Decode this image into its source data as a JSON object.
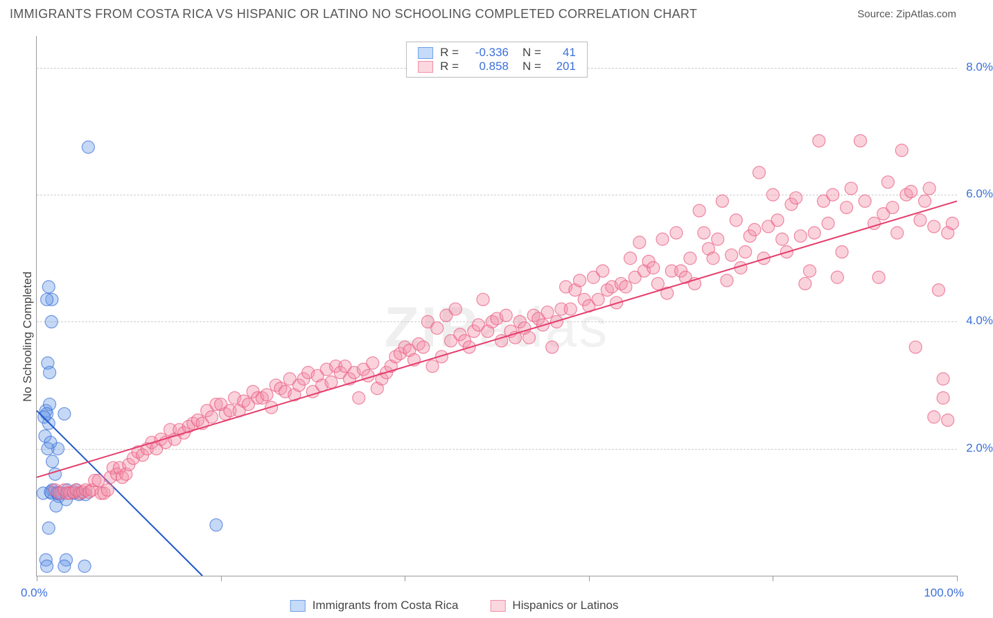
{
  "title": "IMMIGRANTS FROM COSTA RICA VS HISPANIC OR LATINO NO SCHOOLING COMPLETED CORRELATION CHART",
  "source_label": "Source:",
  "source_name": "ZipAtlas.com",
  "y_axis_label": "No Schooling Completed",
  "watermark": {
    "bold": "ZIP",
    "thin": "atlas"
  },
  "chart": {
    "type": "scatter",
    "xlim": [
      0,
      100
    ],
    "ylim": [
      0,
      8.5
    ],
    "x_tick_positions": [
      0,
      20,
      40,
      60,
      80,
      100
    ],
    "x_label_min": "0.0%",
    "x_label_max": "100.0%",
    "y_labels": [
      {
        "value": 2.0,
        "text": "2.0%"
      },
      {
        "value": 4.0,
        "text": "4.0%"
      },
      {
        "value": 6.0,
        "text": "6.0%"
      },
      {
        "value": 8.0,
        "text": "8.0%"
      }
    ],
    "grid_color": "#cccccc",
    "axis_color": "#999999",
    "background_color": "#ffffff",
    "marker_radius": 9,
    "marker_opacity": 0.4,
    "series": [
      {
        "name": "Immigrants from Costa Rica",
        "R": "-0.336",
        "N": "41",
        "color": "#6d9ee6",
        "stroke": "#3a6fd8",
        "fit_line": {
          "x1": 0,
          "y1": 2.6,
          "x2": 18,
          "y2": 0.0,
          "stroke": "#1e56c9",
          "width": 2
        },
        "data": [
          [
            1.3,
            2.4
          ],
          [
            1.0,
            2.6
          ],
          [
            1.4,
            2.7
          ],
          [
            1.1,
            2.55
          ],
          [
            1.7,
            1.35
          ],
          [
            1.6,
            1.3
          ],
          [
            1.7,
            1.8
          ],
          [
            0.7,
            1.3
          ],
          [
            1.5,
            1.32
          ],
          [
            2.2,
            1.31
          ],
          [
            2.0,
            1.6
          ],
          [
            2.4,
            1.25
          ],
          [
            2.3,
            1.3
          ],
          [
            2.7,
            1.3
          ],
          [
            1.2,
            3.35
          ],
          [
            1.3,
            4.55
          ],
          [
            1.65,
            4.35
          ],
          [
            1.1,
            4.35
          ],
          [
            1.6,
            4.0
          ],
          [
            0.8,
            2.5
          ],
          [
            5.6,
            6.75
          ],
          [
            5.2,
            0.15
          ],
          [
            3.2,
            0.25
          ],
          [
            3.0,
            0.15
          ],
          [
            1.0,
            0.25
          ],
          [
            1.1,
            0.15
          ],
          [
            1.3,
            0.75
          ],
          [
            2.1,
            1.1
          ],
          [
            3.2,
            1.2
          ],
          [
            3.3,
            1.35
          ],
          [
            4.3,
            1.35
          ],
          [
            4.6,
            1.28
          ],
          [
            5.3,
            1.28
          ],
          [
            2.3,
            2.0
          ],
          [
            3.0,
            2.55
          ],
          [
            0.9,
            2.2
          ],
          [
            1.5,
            2.1
          ],
          [
            1.2,
            2.0
          ],
          [
            1.4,
            3.2
          ],
          [
            19.5,
            0.8
          ],
          [
            4.0,
            1.3
          ]
        ]
      },
      {
        "name": "Hispanics or Latinos",
        "R": "0.858",
        "N": "201",
        "color": "#f28fa7",
        "stroke": "#e85a7f",
        "fit_line": {
          "x1": 0,
          "y1": 1.55,
          "x2": 100,
          "y2": 5.9,
          "stroke": "#e43d6b",
          "width": 2
        },
        "data": [
          [
            2,
            1.35
          ],
          [
            2.5,
            1.3
          ],
          [
            3,
            1.35
          ],
          [
            3.3,
            1.3
          ],
          [
            3.6,
            1.3
          ],
          [
            4,
            1.32
          ],
          [
            4.3,
            1.35
          ],
          [
            4.7,
            1.3
          ],
          [
            5,
            1.32
          ],
          [
            5.3,
            1.35
          ],
          [
            5.7,
            1.32
          ],
          [
            6,
            1.35
          ],
          [
            6.3,
            1.5
          ],
          [
            6.7,
            1.5
          ],
          [
            7,
            1.3
          ],
          [
            7.3,
            1.3
          ],
          [
            7.7,
            1.35
          ],
          [
            8,
            1.55
          ],
          [
            8.3,
            1.7
          ],
          [
            8.7,
            1.6
          ],
          [
            9,
            1.7
          ],
          [
            9.3,
            1.55
          ],
          [
            9.7,
            1.6
          ],
          [
            10,
            1.75
          ],
          [
            10.5,
            1.85
          ],
          [
            11,
            1.95
          ],
          [
            11.5,
            1.9
          ],
          [
            12,
            2.0
          ],
          [
            12.5,
            2.1
          ],
          [
            13,
            2.0
          ],
          [
            13.5,
            2.15
          ],
          [
            14,
            2.1
          ],
          [
            14.5,
            2.3
          ],
          [
            15,
            2.15
          ],
          [
            15.5,
            2.3
          ],
          [
            16,
            2.25
          ],
          [
            16.5,
            2.35
          ],
          [
            17,
            2.4
          ],
          [
            17.5,
            2.45
          ],
          [
            18,
            2.4
          ],
          [
            18.5,
            2.6
          ],
          [
            19,
            2.5
          ],
          [
            19.5,
            2.7
          ],
          [
            20,
            2.7
          ],
          [
            20.5,
            2.55
          ],
          [
            21,
            2.6
          ],
          [
            21.5,
            2.8
          ],
          [
            22,
            2.6
          ],
          [
            22.5,
            2.75
          ],
          [
            23,
            2.7
          ],
          [
            23.5,
            2.9
          ],
          [
            24,
            2.8
          ],
          [
            24.5,
            2.8
          ],
          [
            25,
            2.85
          ],
          [
            25.5,
            2.65
          ],
          [
            26,
            3.0
          ],
          [
            26.5,
            2.95
          ],
          [
            27,
            2.9
          ],
          [
            27.5,
            3.1
          ],
          [
            28,
            2.85
          ],
          [
            28.5,
            3.0
          ],
          [
            29,
            3.1
          ],
          [
            29.5,
            3.2
          ],
          [
            30,
            2.9
          ],
          [
            30.5,
            3.15
          ],
          [
            31,
            3.0
          ],
          [
            31.5,
            3.25
          ],
          [
            32,
            3.05
          ],
          [
            32.5,
            3.3
          ],
          [
            33,
            3.2
          ],
          [
            33.5,
            3.3
          ],
          [
            34,
            3.1
          ],
          [
            34.5,
            3.2
          ],
          [
            35,
            2.8
          ],
          [
            35.5,
            3.25
          ],
          [
            36,
            3.15
          ],
          [
            36.5,
            3.35
          ],
          [
            37,
            2.95
          ],
          [
            37.5,
            3.1
          ],
          [
            38,
            3.2
          ],
          [
            38.5,
            3.3
          ],
          [
            39,
            3.45
          ],
          [
            39.5,
            3.5
          ],
          [
            40,
            3.6
          ],
          [
            40.5,
            3.55
          ],
          [
            41,
            3.4
          ],
          [
            41.5,
            3.65
          ],
          [
            42,
            3.6
          ],
          [
            42.5,
            4.0
          ],
          [
            43,
            3.3
          ],
          [
            43.5,
            3.9
          ],
          [
            44,
            3.45
          ],
          [
            44.5,
            4.1
          ],
          [
            45,
            3.7
          ],
          [
            45.5,
            4.2
          ],
          [
            46,
            3.8
          ],
          [
            46.5,
            3.7
          ],
          [
            47,
            3.6
          ],
          [
            47.5,
            3.85
          ],
          [
            48,
            3.95
          ],
          [
            48.5,
            4.35
          ],
          [
            49,
            3.85
          ],
          [
            49.5,
            4.0
          ],
          [
            50,
            4.05
          ],
          [
            50.5,
            3.7
          ],
          [
            51,
            4.1
          ],
          [
            51.5,
            3.85
          ],
          [
            52,
            3.75
          ],
          [
            52.5,
            4.0
          ],
          [
            53,
            3.9
          ],
          [
            53.5,
            3.75
          ],
          [
            54,
            4.1
          ],
          [
            54.5,
            4.05
          ],
          [
            55,
            3.95
          ],
          [
            55.5,
            4.15
          ],
          [
            56,
            3.6
          ],
          [
            56.5,
            4.0
          ],
          [
            57,
            4.2
          ],
          [
            57.5,
            4.55
          ],
          [
            58,
            4.2
          ],
          [
            58.5,
            4.5
          ],
          [
            59,
            4.65
          ],
          [
            59.5,
            4.35
          ],
          [
            60,
            4.25
          ],
          [
            60.5,
            4.7
          ],
          [
            61,
            4.35
          ],
          [
            61.5,
            4.8
          ],
          [
            62,
            4.5
          ],
          [
            62.5,
            4.55
          ],
          [
            63,
            4.3
          ],
          [
            63.5,
            4.6
          ],
          [
            64,
            4.55
          ],
          [
            64.5,
            5.0
          ],
          [
            65,
            4.7
          ],
          [
            65.5,
            5.25
          ],
          [
            66,
            4.8
          ],
          [
            66.5,
            4.95
          ],
          [
            67,
            4.85
          ],
          [
            67.5,
            4.6
          ],
          [
            68,
            5.3
          ],
          [
            68.5,
            4.45
          ],
          [
            69,
            4.8
          ],
          [
            69.5,
            5.4
          ],
          [
            70,
            4.8
          ],
          [
            70.5,
            4.7
          ],
          [
            71,
            5.0
          ],
          [
            71.5,
            4.6
          ],
          [
            72,
            5.75
          ],
          [
            72.5,
            5.4
          ],
          [
            73,
            5.15
          ],
          [
            73.5,
            5.0
          ],
          [
            74,
            5.3
          ],
          [
            74.5,
            5.9
          ],
          [
            75,
            4.65
          ],
          [
            75.5,
            5.05
          ],
          [
            76,
            5.6
          ],
          [
            76.5,
            4.85
          ],
          [
            77,
            5.1
          ],
          [
            77.5,
            5.35
          ],
          [
            78,
            5.45
          ],
          [
            78.5,
            6.35
          ],
          [
            79,
            5.0
          ],
          [
            79.5,
            5.5
          ],
          [
            80,
            6.0
          ],
          [
            80.5,
            5.6
          ],
          [
            81,
            5.3
          ],
          [
            81.5,
            5.1
          ],
          [
            82,
            5.85
          ],
          [
            82.5,
            5.95
          ],
          [
            83,
            5.35
          ],
          [
            83.5,
            4.6
          ],
          [
            84,
            4.8
          ],
          [
            84.5,
            5.4
          ],
          [
            85,
            6.85
          ],
          [
            85.5,
            5.9
          ],
          [
            86,
            5.55
          ],
          [
            86.5,
            6.0
          ],
          [
            87,
            4.7
          ],
          [
            87.5,
            5.1
          ],
          [
            88,
            5.8
          ],
          [
            88.5,
            6.1
          ],
          [
            89.5,
            6.85
          ],
          [
            90,
            5.9
          ],
          [
            91,
            5.55
          ],
          [
            91.5,
            4.7
          ],
          [
            92,
            5.7
          ],
          [
            92.5,
            6.2
          ],
          [
            93,
            5.8
          ],
          [
            93.5,
            5.4
          ],
          [
            94,
            6.7
          ],
          [
            94.5,
            6.0
          ],
          [
            95,
            6.05
          ],
          [
            95.5,
            3.6
          ],
          [
            96,
            5.6
          ],
          [
            96.5,
            5.9
          ],
          [
            97,
            6.1
          ],
          [
            97.5,
            5.5
          ],
          [
            97.5,
            2.5
          ],
          [
            98,
            4.5
          ],
          [
            98.5,
            3.1
          ],
          [
            98.5,
            2.8
          ],
          [
            99,
            5.4
          ],
          [
            99,
            2.45
          ],
          [
            99.5,
            5.55
          ]
        ]
      }
    ]
  },
  "legend_bottom": [
    {
      "label": "Immigrants from Costa Rica",
      "swatch_fill": "#c6dbf7",
      "swatch_stroke": "#6d9ee6"
    },
    {
      "label": "Hispanics or Latinos",
      "swatch_fill": "#fbd7e0",
      "swatch_stroke": "#f28fa7"
    }
  ]
}
